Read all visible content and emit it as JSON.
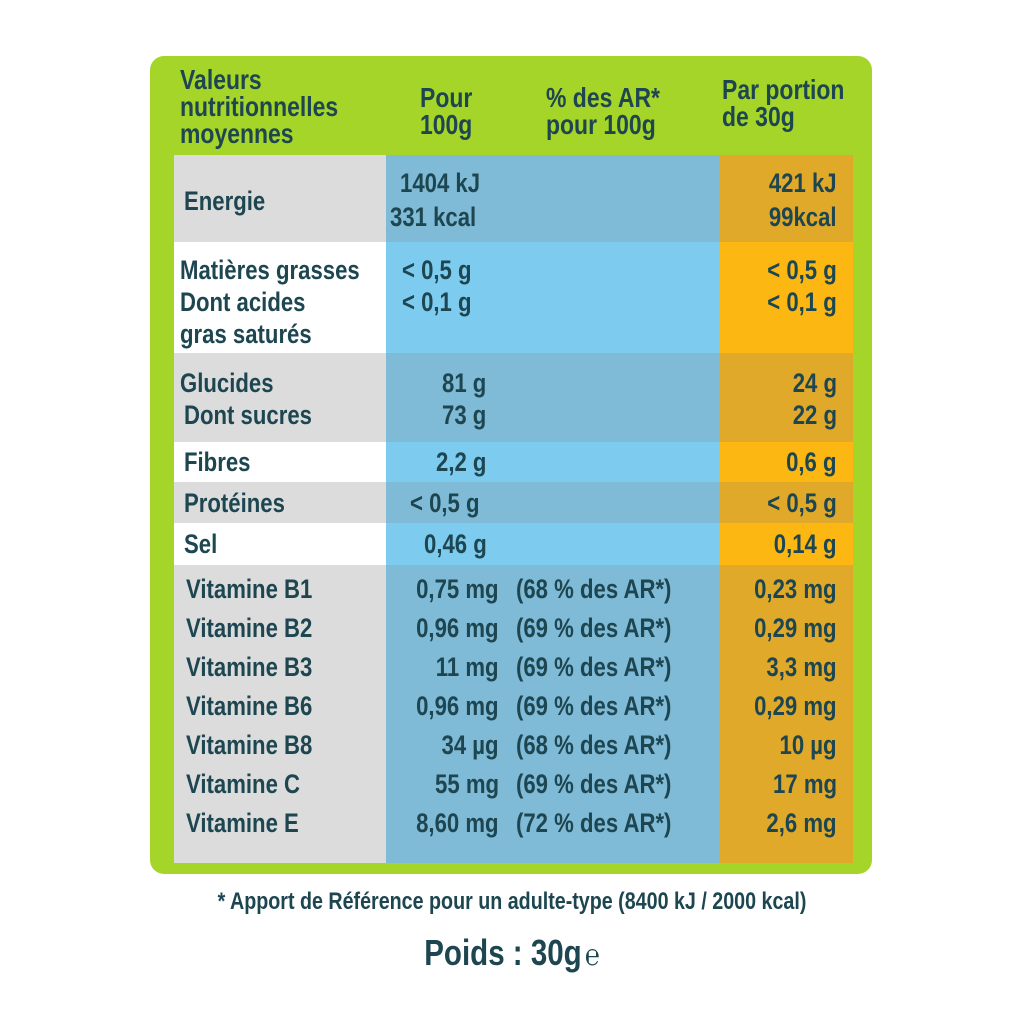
{
  "header": {
    "col_label": [
      "Valeurs",
      "nutritionnelles",
      "moyennes"
    ],
    "col_100g": [
      "Pour",
      "100g"
    ],
    "col_ar": [
      "% des AR*",
      "pour 100g"
    ],
    "col_portion": [
      "Par portion",
      "de 30g"
    ]
  },
  "rows": {
    "energie": {
      "label": "Energie",
      "v100": [
        "1404 kJ",
        "331 kcal"
      ],
      "por": [
        "421 kJ",
        "99kcal"
      ]
    },
    "matieres": {
      "label": [
        "Matières grasses",
        "Dont acides",
        "gras saturés"
      ],
      "v100": [
        "< 0,5 g",
        "< 0,1 g"
      ],
      "por": [
        "< 0,5 g",
        "< 0,1 g"
      ]
    },
    "glucides": {
      "label": [
        "Glucides",
        "Dont sucres"
      ],
      "v100": [
        "81 g",
        "73 g"
      ],
      "por": [
        "24 g",
        "22 g"
      ]
    },
    "fibres": {
      "label": "Fibres",
      "v100": "2,2 g",
      "por": "0,6 g"
    },
    "proteines": {
      "label": "Protéines",
      "v100": "< 0,5 g",
      "por": "< 0,5 g"
    },
    "sel": {
      "label": "Sel",
      "v100": "0,46 g",
      "por": "0,14 g"
    }
  },
  "vitamins": [
    {
      "label": "Vitamine B1",
      "v100": "0,75 mg",
      "ar": "(68 % des AR*)",
      "por": "0,23 mg"
    },
    {
      "label": "Vitamine B2",
      "v100": "0,96 mg",
      "ar": "(69 % des AR*)",
      "por": "0,29 mg"
    },
    {
      "label": "Vitamine B3",
      "v100": "11 mg",
      "ar": "(69 % des AR*)",
      "por": "3,3 mg"
    },
    {
      "label": "Vitamine B6",
      "v100": "0,96 mg",
      "ar": "(69 % des AR*)",
      "por": "0,29 mg"
    },
    {
      "label": "Vitamine B8",
      "v100": "34 µg",
      "ar": "(68 % des AR*)",
      "por": "10 µg"
    },
    {
      "label": "Vitamine C",
      "v100": "55 mg",
      "ar": "(69 % des AR*)",
      "por": "17 mg"
    },
    {
      "label": "Vitamine E",
      "v100": "8,60 mg",
      "ar": "(72 % des AR*)",
      "por": "2,6 mg"
    }
  ],
  "footnote": "* Apport de Référence pour un adulte-type (8400 kJ / 2000 kcal)",
  "weight": "Poids : 30g",
  "estimated_sign": "℮",
  "colors": {
    "frame": "#a6d52a",
    "label_dark": "#dcdcdc",
    "label_light": "#ffffff",
    "blue_dark": "#7fbad6",
    "blue_light": "#7dcbef",
    "orange_dark": "#e0a92a",
    "orange_light": "#fdb713",
    "text": "#1d4651"
  }
}
